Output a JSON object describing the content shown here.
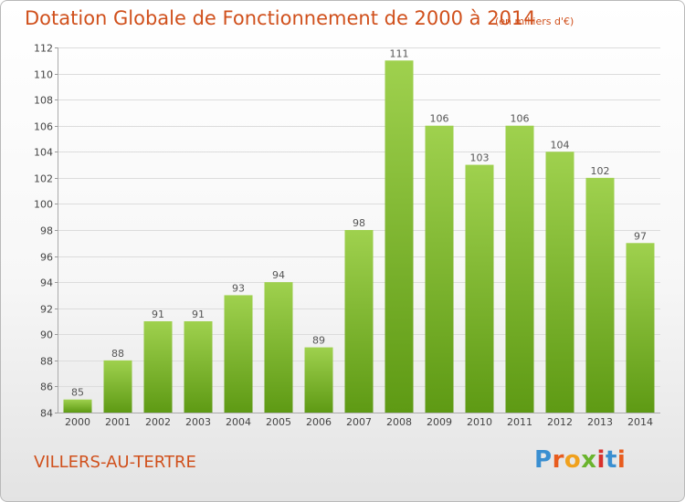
{
  "header": {
    "title": "Dotation Globale de Fonctionnement de 2000 à 2014",
    "subtitle": "(en milliers d'€)"
  },
  "footer": {
    "location": "VILLERS-AU-TERTRE",
    "logo": "Proxiti"
  },
  "colors": {
    "title": "#d0501c",
    "bar_top": "#9fd14e",
    "bar_bottom": "#5e9a14",
    "logo_letters": [
      "#3a8fd1",
      "#e85c1e",
      "#f0a11d",
      "#6ab42d",
      "#d8312c",
      "#3a8fd1",
      "#e85c1e"
    ]
  },
  "chart_data": {
    "type": "bar",
    "title": "Dotation Globale de Fonctionnement de 2000 à 2014",
    "subtitle": "(en milliers d'€)",
    "xlabel": "",
    "ylabel": "",
    "categories": [
      "2000",
      "2001",
      "2002",
      "2003",
      "2004",
      "2005",
      "2006",
      "2007",
      "2008",
      "2009",
      "2010",
      "2011",
      "2012",
      "2013",
      "2014"
    ],
    "values": [
      85,
      88,
      91,
      91,
      93,
      94,
      89,
      98,
      111,
      106,
      103,
      106,
      104,
      102,
      97
    ],
    "ylim": [
      84,
      112
    ],
    "yticks": [
      84,
      86,
      88,
      90,
      92,
      94,
      96,
      98,
      100,
      102,
      104,
      106,
      108,
      110,
      112
    ],
    "grid": true,
    "data_labels": true,
    "legend": "none"
  }
}
